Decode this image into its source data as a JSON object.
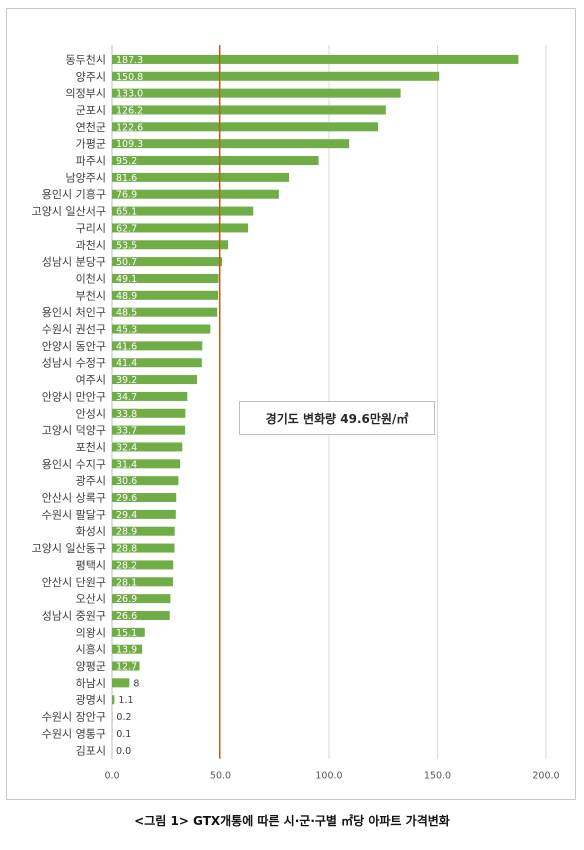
{
  "caption": "<그림 1> GTX개통에 따른 시·군·구별 ㎡당 아파트 가격변화",
  "annotation": "경기도 변화량 49.6만원/㎡",
  "colors": {
    "bar": "#70ad47",
    "reference_line": "#c55a11",
    "axis": "#bfbfbf"
  },
  "chart_data": {
    "type": "bar",
    "orientation": "horizontal",
    "categories": [
      "동두천시",
      "양주시",
      "의정부시",
      "군포시",
      "연천군",
      "가평군",
      "파주시",
      "남양주시",
      "용인시 기흥구",
      "고양시 일산서구",
      "구리시",
      "과천시",
      "성남시 분당구",
      "이천시",
      "부천시",
      "용인시 처인구",
      "수원시 권선구",
      "안양시 동안구",
      "성남시 수정구",
      "여주시",
      "안양시 만안구",
      "안성시",
      "고양시 덕양구",
      "포천시",
      "용인시 수지구",
      "광주시",
      "안산시 상록구",
      "수원시 팔달구",
      "화성시",
      "고양시 일산동구",
      "평택시",
      "안산시 단원구",
      "오산시",
      "성남시 중원구",
      "의왕시",
      "시흥시",
      "양평군",
      "하남시",
      "광명시",
      "수원시 장안구",
      "수원시 영통구",
      "김포시"
    ],
    "values": [
      187.3,
      150.8,
      133.0,
      126.2,
      122.6,
      109.3,
      95.2,
      81.6,
      76.9,
      65.1,
      62.7,
      53.5,
      50.7,
      49.1,
      48.9,
      48.5,
      45.3,
      41.6,
      41.4,
      39.2,
      34.7,
      33.8,
      33.7,
      32.4,
      31.4,
      30.6,
      29.6,
      29.4,
      28.9,
      28.8,
      28.2,
      28.1,
      26.9,
      26.6,
      15.1,
      13.9,
      12.7,
      8,
      1.1,
      0.2,
      0.1,
      0.0
    ],
    "value_labels": [
      "187.3",
      "150.8",
      "133.0",
      "126.2",
      "122.6",
      "109.3",
      "95.2",
      "81.6",
      "76.9",
      "65.1",
      "62.7",
      "53.5",
      "50.7",
      "49.1",
      "48.9",
      "48.5",
      "45.3",
      "41.6",
      "41.4",
      "39.2",
      "34.7",
      "33.8",
      "33.7",
      "32.4",
      "31.4",
      "30.6",
      "29.6",
      "29.4",
      "28.9",
      "28.8",
      "28.2",
      "28.1",
      "26.9",
      "26.6",
      "15.1",
      "13.9",
      "12.7",
      "8",
      "1.1",
      "0.2",
      "0.1",
      "0.0"
    ],
    "xlim": [
      0,
      200
    ],
    "x_ticks": [
      "0.0",
      "50.0",
      "100.0",
      "150.0",
      "200.0"
    ],
    "reference_value": 49.6,
    "grid": true,
    "title": "",
    "xlabel": "",
    "ylabel": ""
  }
}
